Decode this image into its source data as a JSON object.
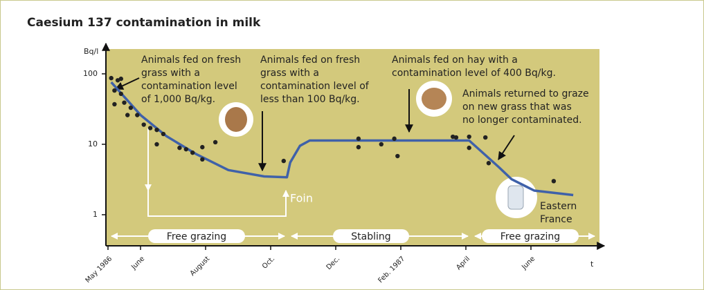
{
  "chart_data": {
    "type": "line",
    "title": "Caesium 137 contamination in milk",
    "y_label": "Bq/l",
    "x_label": "t",
    "log_y": true,
    "grid": false,
    "xlim": [
      0,
      15
    ],
    "xticks": [
      {
        "value": 0,
        "label": "May 1986"
      },
      {
        "value": 1,
        "label": "June"
      },
      {
        "value": 3,
        "label": "August"
      },
      {
        "value": 5,
        "label": "Oct."
      },
      {
        "value": 7,
        "label": "Dec."
      },
      {
        "value": 9,
        "label": "Feb. 1987"
      },
      {
        "value": 11,
        "label": "April"
      },
      {
        "value": 13,
        "label": "June"
      }
    ],
    "ylim": [
      0.362,
      225
    ],
    "yticks": [
      1,
      10,
      100
    ],
    "curve": {
      "color": "#3f61a9",
      "x": [
        0.1,
        1.0,
        1.8,
        2.7,
        3.7,
        4.8,
        5.5,
        5.6,
        5.9,
        6.2,
        11.1,
        12.0,
        12.4,
        13.1,
        14.3
      ],
      "values": [
        76,
        26,
        13,
        7.3,
        4.3,
        3.5,
        3.4,
        5.5,
        9.5,
        11.3,
        11.3,
        4.8,
        3.2,
        2.2,
        1.9
      ]
    },
    "points": {
      "color": "#222222",
      "x": [
        0.1,
        0.3,
        0.4,
        0.2,
        0.4,
        0.2,
        0.5,
        0.7,
        0.6,
        0.9,
        1.1,
        1.3,
        1.5,
        1.7,
        1.5,
        2.2,
        2.4,
        2.6,
        2.9,
        2.9,
        3.3,
        5.4,
        7.7,
        7.7,
        8.4,
        8.8,
        8.9,
        10.6,
        10.7,
        11.1,
        11.1,
        11.6,
        11.7,
        13.7
      ],
      "values": [
        87,
        81,
        85,
        58,
        52,
        37,
        39,
        33,
        26,
        26,
        19,
        17,
        16,
        14,
        10,
        8.9,
        8.5,
        7.6,
        6.1,
        9.1,
        10.7,
        5.8,
        12,
        9.1,
        10,
        12,
        6.8,
        12.8,
        12.5,
        12.8,
        8.9,
        12.5,
        5.4,
        3.0
      ]
    },
    "annotations": [
      {
        "lines": [
          "Animals fed on fresh",
          "grass with a",
          "contamination level",
          "of 1,000 Bq/kg."
        ]
      },
      {
        "lines": [
          "Animals fed on fresh",
          "grass with a",
          "contamination level of",
          "less than 100 Bq/kg."
        ]
      },
      {
        "lines": [
          "Animals fed on hay with a",
          "contamination level of 400 Bq/kg."
        ]
      },
      {
        "lines": [
          "Animals returned to graze",
          "on new grass that was",
          "no longer contaminated."
        ]
      },
      {
        "lines": [
          "Foin"
        ]
      },
      {
        "lines": [
          "Eastern",
          "France"
        ]
      }
    ],
    "periods": [
      "Free grazing",
      "Stabling",
      "Free grazing"
    ]
  }
}
